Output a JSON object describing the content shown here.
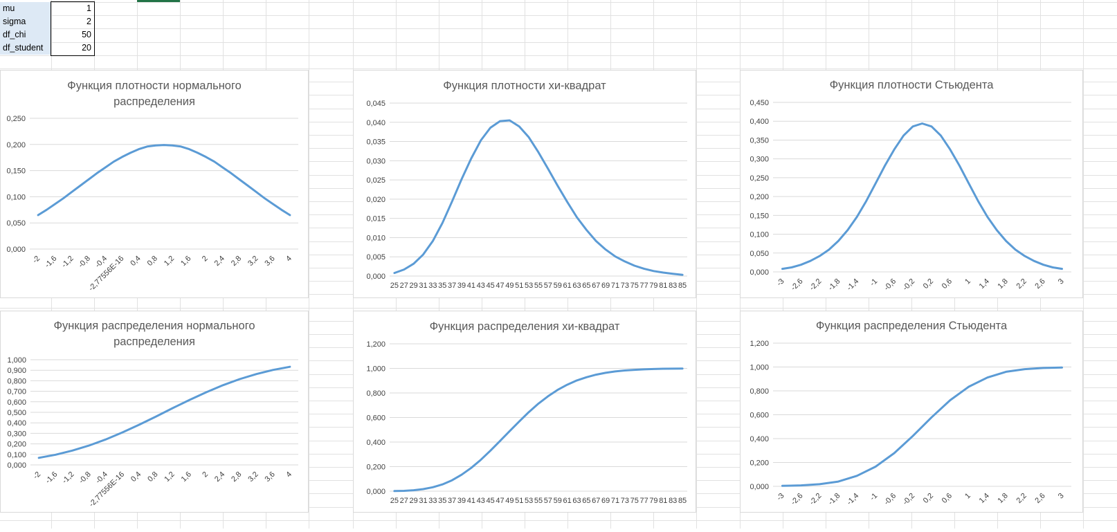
{
  "params": [
    {
      "name": "mu",
      "value": "1"
    },
    {
      "name": "sigma",
      "value": "2"
    },
    {
      "name": "df_chi",
      "value": "50"
    },
    {
      "name": "df_student",
      "value": "20"
    }
  ],
  "colors": {
    "line": "#5b9bd5",
    "grid": "#d9d9d9",
    "sheet_grid": "#e1e1e1",
    "title": "#595959",
    "param_fill": "#dde9f5"
  },
  "chart_data": [
    {
      "type": "line",
      "title": "Функция плотности нормального распределения",
      "title_lines": [
        "Функция плотности нормального",
        "распределения"
      ],
      "categories": [
        "-2",
        "-1,6",
        "-1,2",
        "-0,8",
        "-0,4",
        "-2,77556E-16",
        "0,4",
        "0,8",
        "1,2",
        "1,6",
        "2",
        "2,4",
        "2,8",
        "3,2",
        "3,6",
        "4"
      ],
      "x_ticks": [
        "-2",
        "-1,6",
        "-1,2",
        "-0,8",
        "-0,4",
        "-2,77556E-16",
        "0,4",
        "0,8",
        "1,2",
        "1,6",
        "2",
        "2,4",
        "2,8",
        "3,2",
        "3,6",
        "4"
      ],
      "y_ticks": [
        "0,000",
        "0,050",
        "0,100",
        "0,150",
        "0,200",
        "0,250"
      ],
      "ylim": [
        0,
        0.25
      ],
      "x_range": [
        -2,
        4
      ],
      "x": [
        -2,
        -1.8,
        -1.6,
        -1.4,
        -1.2,
        -1,
        -0.8,
        -0.6,
        -0.4,
        -0.2,
        0,
        0.2,
        0.4,
        0.6,
        0.8,
        1,
        1.2,
        1.4,
        1.6,
        1.8,
        2,
        2.2,
        2.4,
        2.6,
        2.8,
        3,
        3.2,
        3.4,
        3.6,
        3.8,
        4
      ],
      "values": [
        0.065,
        0.075,
        0.086,
        0.097,
        0.109,
        0.121,
        0.133,
        0.145,
        0.156,
        0.167,
        0.176,
        0.184,
        0.191,
        0.196,
        0.198,
        0.199,
        0.198,
        0.196,
        0.191,
        0.184,
        0.176,
        0.167,
        0.156,
        0.145,
        0.133,
        0.121,
        0.109,
        0.097,
        0.086,
        0.075,
        0.065
      ]
    },
    {
      "type": "line",
      "title": "Функция плотности хи-квадрат",
      "title_lines": [
        "Функция плотности хи-квадрат"
      ],
      "x_ticks": [
        "25",
        "27",
        "29",
        "31",
        "33",
        "35",
        "37",
        "39",
        "41",
        "43",
        "45",
        "47",
        "49",
        "51",
        "53",
        "55",
        "57",
        "59",
        "61",
        "63",
        "65",
        "67",
        "69",
        "71",
        "73",
        "75",
        "77",
        "79",
        "81",
        "83",
        "85"
      ],
      "y_ticks": [
        "0,000",
        "0,005",
        "0,010",
        "0,015",
        "0,020",
        "0,025",
        "0,030",
        "0,035",
        "0,040",
        "0,045"
      ],
      "ylim": [
        0,
        0.045
      ],
      "x_range": [
        25,
        85
      ],
      "x": [
        25,
        27,
        29,
        31,
        33,
        35,
        37,
        39,
        41,
        43,
        45,
        47,
        49,
        51,
        53,
        55,
        57,
        59,
        61,
        63,
        65,
        67,
        69,
        71,
        73,
        75,
        77,
        79,
        81,
        83,
        85
      ],
      "values": [
        0.0008,
        0.0017,
        0.0032,
        0.0056,
        0.0091,
        0.0138,
        0.0194,
        0.0252,
        0.0306,
        0.0353,
        0.0386,
        0.0403,
        0.0405,
        0.0389,
        0.0361,
        0.0322,
        0.0279,
        0.0235,
        0.0193,
        0.0153,
        0.012,
        0.0091,
        0.0069,
        0.0051,
        0.0038,
        0.0027,
        0.0019,
        0.0013,
        0.0009,
        0.0006,
        0.0003
      ]
    },
    {
      "type": "line",
      "title": "Функция плотности Стьюдента",
      "title_lines": [
        "Функция плотности Стьюдента"
      ],
      "x_ticks": [
        "-3",
        "-2,6",
        "-2,2",
        "-1,8",
        "-1,4",
        "-1",
        "-0,6",
        "-0,2",
        "0,2",
        "0,6",
        "1",
        "1,4",
        "1,8",
        "2,2",
        "2,6",
        "3"
      ],
      "y_ticks": [
        "0,000",
        "0,050",
        "0,100",
        "0,150",
        "0,200",
        "0,250",
        "0,300",
        "0,350",
        "0,400",
        "0,450"
      ],
      "ylim": [
        0,
        0.45
      ],
      "x_range": [
        -3,
        3
      ],
      "x": [
        -3,
        -2.8,
        -2.6,
        -2.4,
        -2.2,
        -2,
        -1.8,
        -1.6,
        -1.4,
        -1.2,
        -1,
        -0.8,
        -0.6,
        -0.4,
        -0.2,
        0,
        0.2,
        0.4,
        0.6,
        0.8,
        1,
        1.2,
        1.4,
        1.6,
        1.8,
        2,
        2.2,
        2.4,
        2.6,
        2.8,
        3
      ],
      "values": [
        0.008,
        0.012,
        0.019,
        0.029,
        0.042,
        0.059,
        0.082,
        0.111,
        0.146,
        0.188,
        0.235,
        0.282,
        0.325,
        0.362,
        0.386,
        0.394,
        0.386,
        0.362,
        0.325,
        0.282,
        0.235,
        0.188,
        0.146,
        0.111,
        0.082,
        0.059,
        0.042,
        0.029,
        0.019,
        0.012,
        0.008
      ]
    },
    {
      "type": "line",
      "title": "Функция распределения нормального распределения",
      "title_lines": [
        "Функция распределения нормального",
        "распределения"
      ],
      "x_ticks": [
        "-2",
        "-1,6",
        "-1,2",
        "-0,8",
        "-0,4",
        "-2,77556E-16",
        "0,4",
        "0,8",
        "1,2",
        "1,6",
        "2",
        "2,4",
        "2,8",
        "3,2",
        "3,6",
        "4"
      ],
      "y_ticks": [
        "0,000",
        "0,100",
        "0,200",
        "0,300",
        "0,400",
        "0,500",
        "0,600",
        "0,700",
        "0,800",
        "0,900",
        "1,000"
      ],
      "ylim": [
        0,
        1
      ],
      "x_range": [
        -2,
        4
      ],
      "x": [
        -2,
        -1.6,
        -1.2,
        -0.8,
        -0.4,
        0,
        0.4,
        0.8,
        1.2,
        1.6,
        2,
        2.4,
        2.8,
        3.2,
        3.6,
        4
      ],
      "values": [
        0.067,
        0.097,
        0.136,
        0.184,
        0.242,
        0.309,
        0.382,
        0.46,
        0.54,
        0.618,
        0.691,
        0.758,
        0.816,
        0.864,
        0.903,
        0.933
      ]
    },
    {
      "type": "line",
      "title": "Функция распределения хи-квадрат",
      "title_lines": [
        "Функция распределения хи-квадрат"
      ],
      "x_ticks": [
        "25",
        "27",
        "29",
        "31",
        "33",
        "35",
        "37",
        "39",
        "41",
        "43",
        "45",
        "47",
        "49",
        "51",
        "53",
        "55",
        "57",
        "59",
        "61",
        "63",
        "65",
        "67",
        "69",
        "71",
        "73",
        "75",
        "77",
        "79",
        "81",
        "83",
        "85"
      ],
      "y_ticks": [
        "0,000",
        "0,200",
        "0,400",
        "0,600",
        "0,800",
        "1,000",
        "1,200"
      ],
      "ylim": [
        0,
        1.2
      ],
      "x_range": [
        25,
        85
      ],
      "x": [
        25,
        27,
        29,
        31,
        33,
        35,
        37,
        39,
        41,
        43,
        45,
        47,
        49,
        51,
        53,
        55,
        57,
        59,
        61,
        63,
        65,
        67,
        69,
        71,
        73,
        75,
        77,
        79,
        81,
        83,
        85
      ],
      "values": [
        0.001,
        0.003,
        0.008,
        0.017,
        0.032,
        0.055,
        0.089,
        0.134,
        0.19,
        0.256,
        0.33,
        0.409,
        0.489,
        0.568,
        0.644,
        0.713,
        0.773,
        0.825,
        0.867,
        0.902,
        0.928,
        0.949,
        0.964,
        0.975,
        0.983,
        0.988,
        0.992,
        0.995,
        0.997,
        0.998,
        0.999
      ]
    },
    {
      "type": "line",
      "title": "Функция распределения Стьюдента",
      "title_lines": [
        "Функция распределения Стьюдента"
      ],
      "x_ticks": [
        "-3",
        "-2,6",
        "-2,2",
        "-1,8",
        "-1,4",
        "-1",
        "-0,6",
        "-0,2",
        "0,2",
        "0,6",
        "1",
        "1,4",
        "1,8",
        "2,2",
        "2,6",
        "3"
      ],
      "y_ticks": [
        "0,000",
        "0,200",
        "0,400",
        "0,600",
        "0,800",
        "1,000",
        "1,200"
      ],
      "ylim": [
        0,
        1.2
      ],
      "x_range": [
        -3,
        3
      ],
      "x": [
        -3,
        -2.6,
        -2.2,
        -1.8,
        -1.4,
        -1,
        -0.6,
        -0.2,
        0.2,
        0.6,
        1,
        1.4,
        1.8,
        2.2,
        2.6,
        3
      ],
      "values": [
        0.004,
        0.008,
        0.018,
        0.04,
        0.088,
        0.165,
        0.278,
        0.422,
        0.578,
        0.722,
        0.835,
        0.912,
        0.96,
        0.982,
        0.992,
        0.996
      ]
    }
  ]
}
